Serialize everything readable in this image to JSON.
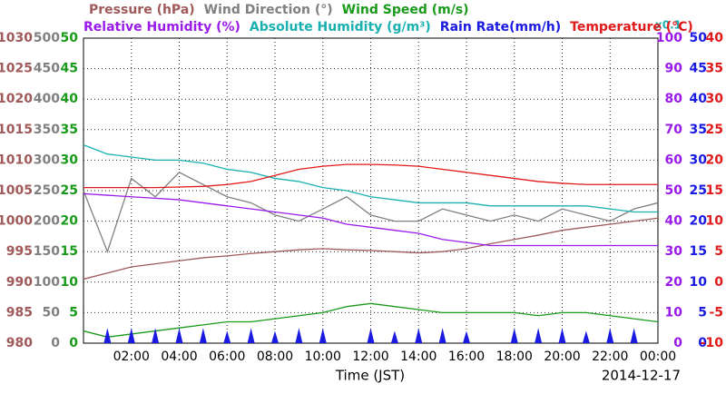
{
  "chart_data": {
    "type": "line",
    "x": [
      0,
      1,
      2,
      3,
      4,
      5,
      6,
      7,
      8,
      9,
      10,
      11,
      12,
      13,
      14,
      15,
      16,
      17,
      18,
      19,
      20,
      21,
      22,
      23,
      24
    ],
    "xlim": [
      0,
      24
    ],
    "xticks": [
      {
        "value": 2,
        "label": "02:00"
      },
      {
        "value": 4,
        "label": "04:00"
      },
      {
        "value": 6,
        "label": "06:00"
      },
      {
        "value": 8,
        "label": "08:00"
      },
      {
        "value": 10,
        "label": "10:00"
      },
      {
        "value": 12,
        "label": "12:00"
      },
      {
        "value": 14,
        "label": "14:00"
      },
      {
        "value": 16,
        "label": "16:00"
      },
      {
        "value": 18,
        "label": "18:00"
      },
      {
        "value": 20,
        "label": "20:00"
      },
      {
        "value": 22,
        "label": "22:00"
      },
      {
        "value": 24,
        "label": "00:00"
      }
    ],
    "xlabel": "Time (JST)",
    "date": "2014-12-17",
    "abs_humidity_note": "x0.1",
    "grid": true,
    "axes": {
      "pressure": {
        "lim": [
          980,
          1030
        ],
        "ticks": [
          980,
          985,
          990,
          995,
          1000,
          1005,
          1010,
          1015,
          1020,
          1025,
          1030
        ]
      },
      "wind_direction": {
        "lim": [
          0,
          500
        ],
        "ticks": [
          0,
          50,
          100,
          150,
          200,
          250,
          300,
          350,
          400,
          450,
          500
        ]
      },
      "wind_speed": {
        "lim": [
          0,
          50
        ],
        "ticks": [
          0,
          5,
          10,
          15,
          20,
          25,
          30,
          35,
          40,
          45,
          50
        ]
      },
      "humidity": {
        "lim": [
          0,
          100
        ],
        "ticks": [
          0,
          10,
          20,
          30,
          40,
          50,
          60,
          70,
          80,
          90,
          100
        ]
      },
      "abs_humidity": {
        "lim": [
          0,
          10
        ]
      },
      "rain": {
        "lim": [
          0,
          50
        ],
        "ticks": [
          0,
          5,
          10,
          15,
          20,
          25,
          30,
          35,
          40,
          45,
          50
        ]
      },
      "temperature": {
        "lim": [
          -10,
          40
        ],
        "ticks": [
          -10,
          -5,
          0,
          5,
          10,
          15,
          20,
          25,
          30,
          35,
          40
        ]
      }
    },
    "series": [
      {
        "name": "Pressure (hPa)",
        "color": "#a05a5a",
        "axis": "pressure",
        "values": [
          990.5,
          991.5,
          992.5,
          993,
          993.5,
          994,
          994.3,
          994.7,
          995,
          995.3,
          995.5,
          995.3,
          995.2,
          995,
          994.8,
          995,
          995.5,
          996.3,
          997,
          997.7,
          998.5,
          999,
          999.5,
          1000,
          1000.5
        ]
      },
      {
        "name": "Wind Direction (°)",
        "color": "#808080",
        "axis": "wind_direction",
        "values": [
          250,
          150,
          270,
          240,
          280,
          260,
          240,
          230,
          210,
          200,
          220,
          240,
          210,
          200,
          200,
          220,
          210,
          200,
          210,
          200,
          220,
          210,
          200,
          220,
          230
        ]
      },
      {
        "name": "Wind Speed (m/s)",
        "color": "#1a9a1a",
        "axis": "wind_speed",
        "values": [
          2,
          1,
          1.5,
          2,
          2.5,
          3,
          3.5,
          3.5,
          4,
          4.5,
          5,
          6,
          6.5,
          6,
          5.5,
          5,
          5,
          5,
          5,
          4.5,
          5,
          5,
          4.5,
          4,
          3.5
        ]
      },
      {
        "name": "Relative Humidity (%)",
        "color": "#9a1aea",
        "axis": "humidity",
        "values": [
          49,
          48.5,
          48,
          47.5,
          47,
          46,
          45,
          44,
          43,
          42,
          41,
          39,
          38,
          37,
          36,
          34,
          33,
          32,
          32,
          32,
          32,
          32,
          32,
          32,
          32
        ]
      },
      {
        "name": "Absolute Humidity (g/m³)",
        "color": "#1ab0b0",
        "axis": "abs_humidity",
        "values": [
          6.5,
          6.2,
          6.1,
          6.0,
          6.0,
          5.9,
          5.7,
          5.6,
          5.4,
          5.3,
          5.1,
          5.0,
          4.8,
          4.7,
          4.6,
          4.6,
          4.6,
          4.5,
          4.5,
          4.5,
          4.5,
          4.5,
          4.4,
          4.3,
          4.3
        ]
      },
      {
        "name": "Rain Rate(mm/h)",
        "color": "#1a1ae0",
        "axis": "rain",
        "style": "spike",
        "values": [
          0,
          2.5,
          2.5,
          2.5,
          2.5,
          2.5,
          2,
          2.5,
          2,
          2.5,
          2.5,
          0,
          2.5,
          2,
          2.5,
          2.5,
          2,
          0,
          2.5,
          2.5,
          2.5,
          2,
          2.5,
          2.5,
          0
        ]
      },
      {
        "name": "Temperature (°C)",
        "color": "#e01a1a",
        "axis": "temperature",
        "values": [
          15.5,
          15.5,
          15.5,
          15.5,
          15.6,
          15.7,
          16,
          16.5,
          17.5,
          18.5,
          19,
          19.3,
          19.3,
          19.2,
          19,
          18.5,
          18,
          17.5,
          17,
          16.5,
          16.2,
          16,
          16,
          16,
          16
        ]
      }
    ]
  }
}
